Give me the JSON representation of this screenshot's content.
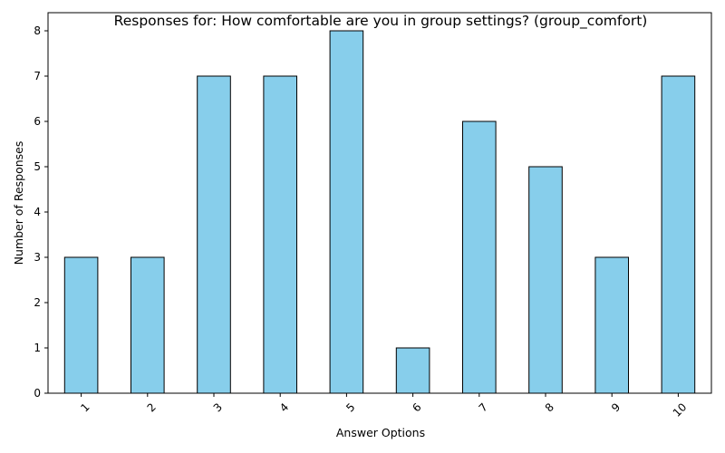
{
  "chart_data": {
    "type": "bar",
    "title": "Responses for: How comfortable are you in group settings? (group_comfort)",
    "xlabel": "Answer Options",
    "ylabel": "Number of Responses",
    "categories": [
      "1",
      "2",
      "3",
      "4",
      "5",
      "6",
      "7",
      "8",
      "9",
      "10"
    ],
    "values": [
      3,
      3,
      7,
      7,
      8,
      1,
      6,
      5,
      3,
      7
    ],
    "ylim": [
      0,
      8.4
    ],
    "yticks": [
      0,
      1,
      2,
      3,
      4,
      5,
      6,
      7,
      8
    ],
    "bar_color": "#87CEEB",
    "edge_color": "#000000",
    "grid": false,
    "legend": "none",
    "x_tick_rotation_deg": 45
  }
}
